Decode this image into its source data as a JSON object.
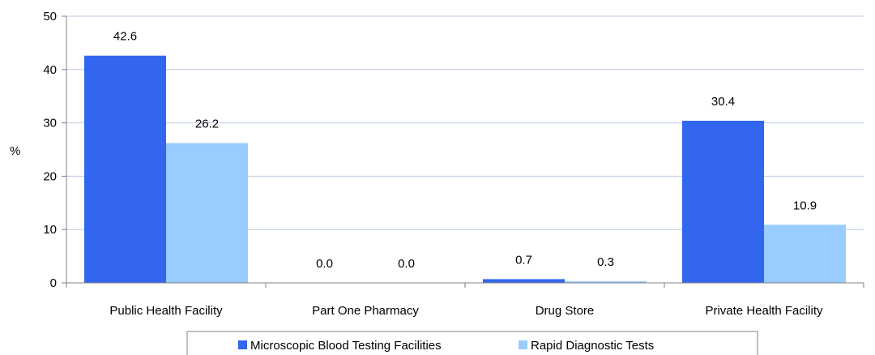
{
  "chart_data": {
    "type": "bar",
    "ylabel": "%",
    "ylim": [
      0,
      50
    ],
    "yticks": [
      0,
      10,
      20,
      30,
      40,
      50
    ],
    "grid": true,
    "legend_position": "bottom",
    "categories": [
      "Public Health Facility",
      "Part One Pharmacy",
      "Drug Store",
      "Private Health Facility"
    ],
    "series": [
      {
        "name": "Microscopic Blood Testing Facilities",
        "color": "#3366ee",
        "values": [
          42.6,
          0.0,
          0.7,
          30.4
        ],
        "labels": [
          "42.6",
          "0.0",
          "0.7",
          "30.4"
        ]
      },
      {
        "name": "Rapid Diagnostic Tests",
        "color": "#99ccff",
        "values": [
          26.2,
          0.0,
          0.3,
          10.9
        ],
        "labels": [
          "26.2",
          "0.0",
          "0.3",
          "10.9"
        ]
      }
    ]
  }
}
